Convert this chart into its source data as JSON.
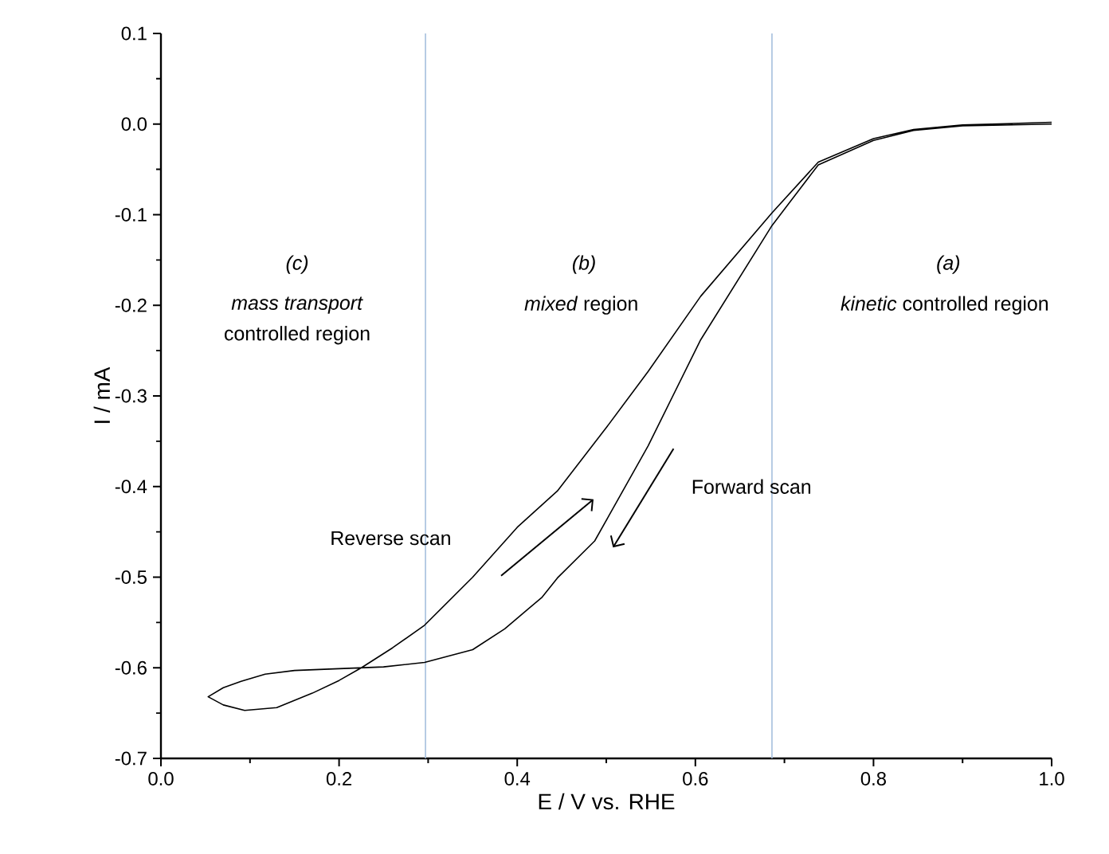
{
  "chart_data": {
    "type": "line",
    "xlabel": "E / V vs. RHE",
    "ylabel": "I / mA",
    "xlim": [
      0.0,
      1.0
    ],
    "ylim": [
      -0.7,
      0.1
    ],
    "xticks": [
      {
        "value": 0.0,
        "label": "0.0"
      },
      {
        "value": 0.1,
        "label": null
      },
      {
        "value": 0.2,
        "label": "0.2"
      },
      {
        "value": 0.3,
        "label": null
      },
      {
        "value": 0.4,
        "label": "0.4"
      },
      {
        "value": 0.5,
        "label": null
      },
      {
        "value": 0.6,
        "label": "0.6"
      },
      {
        "value": 0.7,
        "label": null
      },
      {
        "value": 0.8,
        "label": "0.8"
      },
      {
        "value": 0.9,
        "label": null
      },
      {
        "value": 1.0,
        "label": "1.0"
      }
    ],
    "yticks": [
      {
        "value": -0.7,
        "label": "-0.7"
      },
      {
        "value": -0.65,
        "label": null
      },
      {
        "value": -0.6,
        "label": "-0.6"
      },
      {
        "value": -0.55,
        "label": null
      },
      {
        "value": -0.5,
        "label": "-0.5"
      },
      {
        "value": -0.45,
        "label": null
      },
      {
        "value": -0.4,
        "label": "-0.4"
      },
      {
        "value": -0.35,
        "label": null
      },
      {
        "value": -0.3,
        "label": "-0.3"
      },
      {
        "value": -0.25,
        "label": null
      },
      {
        "value": -0.2,
        "label": "-0.2"
      },
      {
        "value": -0.15,
        "label": null
      },
      {
        "value": -0.1,
        "label": "-0.1"
      },
      {
        "value": -0.05,
        "label": null
      },
      {
        "value": 0.0,
        "label": "0.0"
      },
      {
        "value": 0.05,
        "label": null
      },
      {
        "value": 0.1,
        "label": "0.1"
      }
    ],
    "series": [
      {
        "color": "#000000",
        "x": [
          1.0,
          0.9,
          0.845,
          0.8,
          0.738,
          0.686,
          0.606,
          0.547,
          0.487,
          0.445,
          0.428,
          0.386,
          0.35,
          0.296,
          0.25,
          0.2,
          0.15,
          0.117,
          0.09,
          0.07,
          0.053,
          0.07,
          0.094,
          0.13,
          0.17,
          0.2,
          0.225,
          0.26,
          0.296,
          0.35,
          0.4,
          0.445,
          0.5,
          0.547,
          0.606,
          0.686,
          0.738,
          0.8,
          0.845,
          0.9,
          1.0
        ],
        "values": [
          0.0,
          -0.002,
          -0.007,
          -0.018,
          -0.045,
          -0.112,
          -0.238,
          -0.355,
          -0.46,
          -0.501,
          -0.522,
          -0.557,
          -0.58,
          -0.594,
          -0.599,
          -0.601,
          -0.603,
          -0.607,
          -0.615,
          -0.622,
          -0.632,
          -0.641,
          -0.647,
          -0.644,
          -0.628,
          -0.614,
          -0.6,
          -0.578,
          -0.553,
          -0.5,
          -0.445,
          -0.405,
          -0.335,
          -0.273,
          -0.19,
          -0.098,
          -0.042,
          -0.016,
          -0.006,
          -0.001,
          0.002
        ]
      }
    ],
    "ref_lines": [
      {
        "axis": "x",
        "value": 0.297,
        "color": "#a5bfdd"
      },
      {
        "axis": "x",
        "value": 0.686,
        "color": "#a5bfdd"
      }
    ],
    "annotations": [
      "*(c)*",
      "*mass transport*",
      "controlled region",
      "*(b)*",
      "*mixed* region",
      "*(a)*",
      "*kinetic* controlled region",
      "Reverse scan",
      "Forward scan"
    ]
  }
}
